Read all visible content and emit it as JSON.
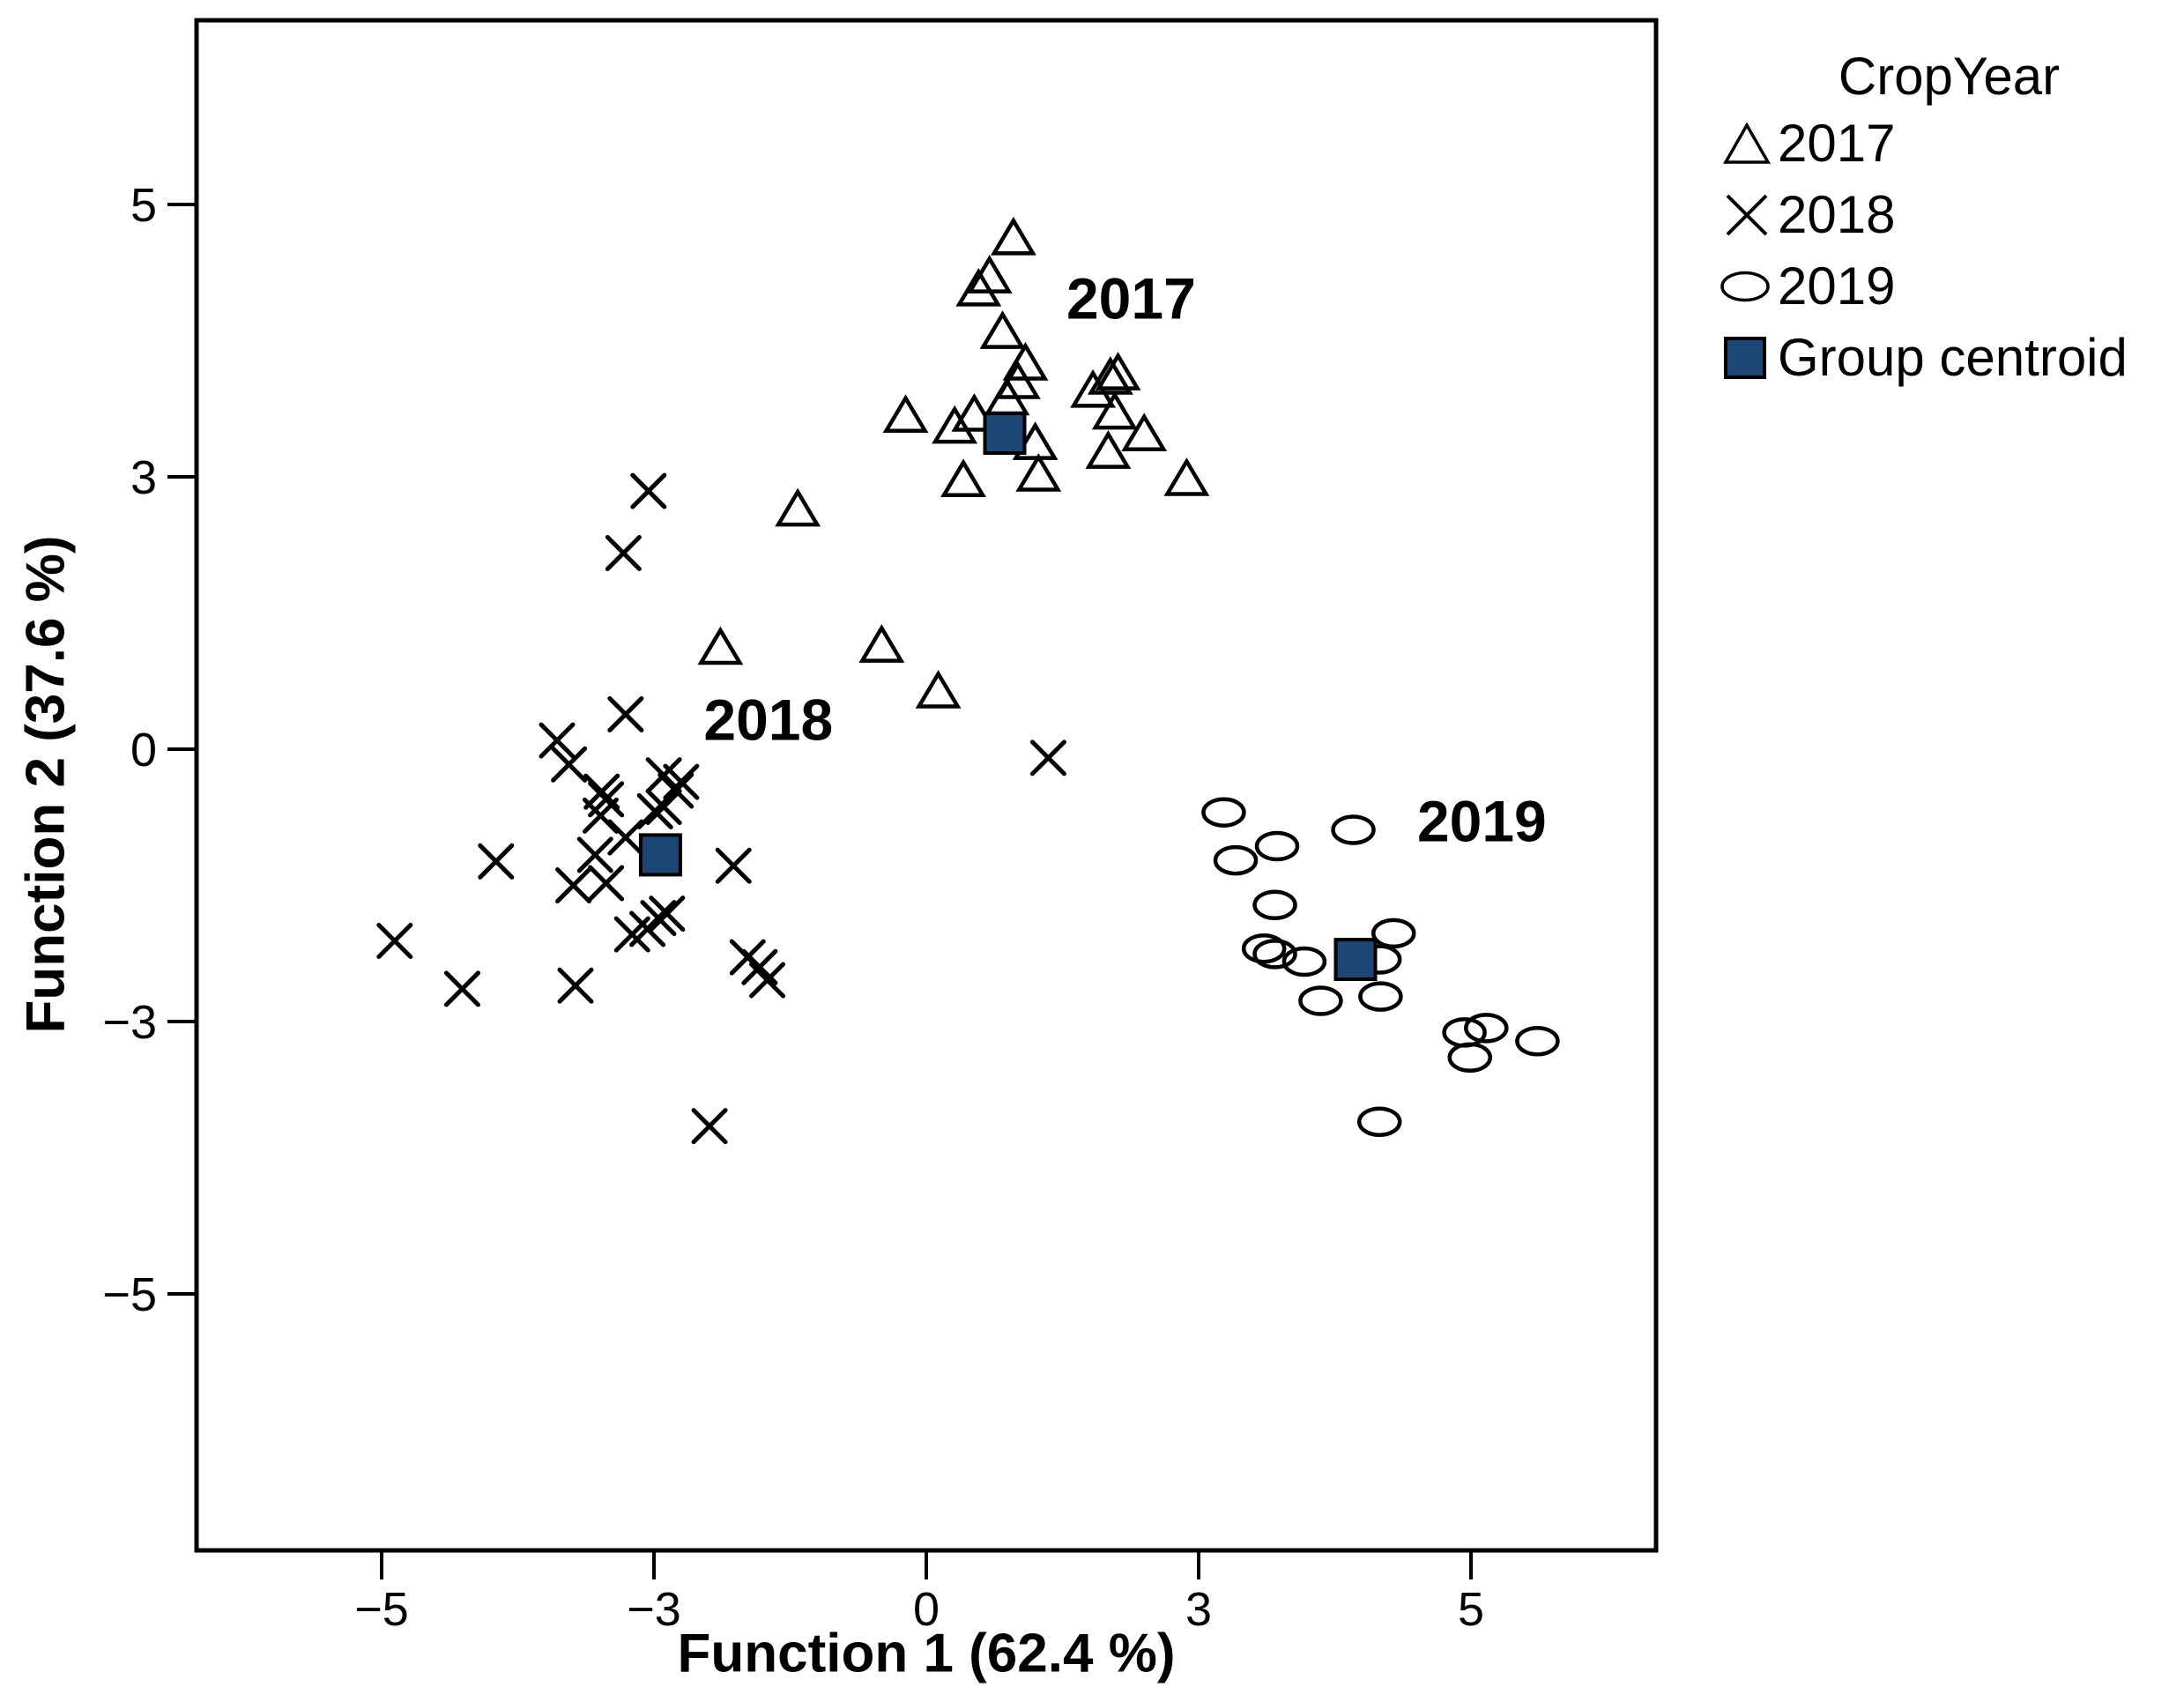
{
  "page": {
    "background": "#ffffff"
  },
  "chart_data": {
    "type": "scatter",
    "title": "",
    "xlabel": "Function 1 (62.4 %)",
    "ylabel": "Function 2 (37.6 %)",
    "axes": {
      "x": {
        "tick_labels": [
          "−5",
          "−3",
          "0",
          "3",
          "5"
        ],
        "tick_values": [
          -5,
          -2.5,
          0,
          2.5,
          5
        ],
        "range": [
          -6.7,
          6.7
        ]
      },
      "y": {
        "tick_labels": [
          "−5",
          "−3",
          "0",
          "3",
          "5"
        ],
        "tick_values": [
          -5,
          -2.5,
          0,
          2.5,
          5
        ],
        "range": [
          -7.35,
          6.69
        ]
      }
    },
    "grid": false,
    "legend": {
      "title": "CropYear",
      "position": "outside-top-right",
      "entries": [
        {
          "label": "2017",
          "marker": "triangle"
        },
        {
          "label": "2018",
          "marker": "x"
        },
        {
          "label": "2019",
          "marker": "ellipse"
        },
        {
          "label": "Group centroid",
          "marker": "filled-square"
        }
      ]
    },
    "colors": {
      "marker_outline": "#000000",
      "centroid_fill": "#1b4676",
      "frame": "#000000"
    },
    "series": [
      {
        "name": "2017",
        "marker": "triangle",
        "points": [
          [
            0.8,
            4.69
          ],
          [
            0.58,
            4.34
          ],
          [
            0.48,
            4.22
          ],
          [
            0.7,
            3.83
          ],
          [
            0.91,
            3.54
          ],
          [
            0.84,
            3.37
          ],
          [
            0.74,
            3.22
          ],
          [
            1.53,
            3.29
          ],
          [
            1.69,
            3.41
          ],
          [
            1.76,
            3.45
          ],
          [
            1.73,
            3.09
          ],
          [
            -0.19,
            3.06
          ],
          [
            0.26,
            2.96
          ],
          [
            0.44,
            3.07
          ],
          [
            1.0,
            2.81
          ],
          [
            1.67,
            2.73
          ],
          [
            2.0,
            2.89
          ],
          [
            0.34,
            2.47
          ],
          [
            1.03,
            2.52
          ],
          [
            2.39,
            2.48
          ],
          [
            -1.18,
            2.2
          ],
          [
            -1.89,
            0.93
          ],
          [
            -0.41,
            0.95
          ],
          [
            0.11,
            0.53
          ]
        ]
      },
      {
        "name": "2018",
        "marker": "x",
        "points": [
          [
            -2.55,
            2.37
          ],
          [
            -2.78,
            1.8
          ],
          [
            -2.76,
            0.32
          ],
          [
            -3.39,
            0.08
          ],
          [
            -3.28,
            -0.14
          ],
          [
            -2.98,
            -0.39
          ],
          [
            -2.41,
            -0.24
          ],
          [
            -2.25,
            -0.3
          ],
          [
            -2.3,
            -0.38
          ],
          [
            -2.99,
            -0.61
          ],
          [
            -2.94,
            -0.46
          ],
          [
            -2.49,
            -0.57
          ],
          [
            -2.41,
            -0.53
          ],
          [
            -2.76,
            -0.81
          ],
          [
            -3.04,
            -0.97
          ],
          [
            -3.95,
            -1.03
          ],
          [
            -1.77,
            -1.07
          ],
          [
            -3.24,
            -1.25
          ],
          [
            -2.94,
            -1.23
          ],
          [
            -2.46,
            -1.55
          ],
          [
            -2.38,
            -1.51
          ],
          [
            -2.7,
            -1.7
          ],
          [
            -2.56,
            -1.65
          ],
          [
            -4.88,
            -1.76
          ],
          [
            -1.64,
            -1.91
          ],
          [
            -1.53,
            -2.0
          ],
          [
            -1.46,
            -2.12
          ],
          [
            -4.26,
            -2.2
          ],
          [
            -3.22,
            -2.17
          ],
          [
            -1.99,
            -3.46
          ],
          [
            1.12,
            -0.08
          ]
        ]
      },
      {
        "name": "2019",
        "marker": "ellipse",
        "points": [
          [
            2.73,
            -0.58
          ],
          [
            3.92,
            -0.74
          ],
          [
            3.22,
            -0.89
          ],
          [
            2.84,
            -1.02
          ],
          [
            3.2,
            -1.43
          ],
          [
            3.1,
            -1.83
          ],
          [
            3.2,
            -1.88
          ],
          [
            3.47,
            -1.95
          ],
          [
            4.29,
            -1.69
          ],
          [
            4.16,
            -1.93
          ],
          [
            3.62,
            -2.31
          ],
          [
            4.17,
            -2.27
          ],
          [
            4.94,
            -2.6
          ],
          [
            5.14,
            -2.56
          ],
          [
            4.99,
            -2.83
          ],
          [
            5.61,
            -2.68
          ],
          [
            4.16,
            -3.42
          ]
        ]
      },
      {
        "name": "Group centroid",
        "marker": "filled-square",
        "points": [
          [
            0.72,
            2.9
          ],
          [
            -2.44,
            -0.97
          ],
          [
            3.94,
            -1.93
          ]
        ]
      }
    ],
    "annotations": [
      {
        "text": "2017",
        "x": 1.88,
        "y": 4.14
      },
      {
        "text": "2018",
        "x": -1.45,
        "y": 0.27
      },
      {
        "text": "2019",
        "x": 5.1,
        "y": -0.66
      }
    ]
  }
}
